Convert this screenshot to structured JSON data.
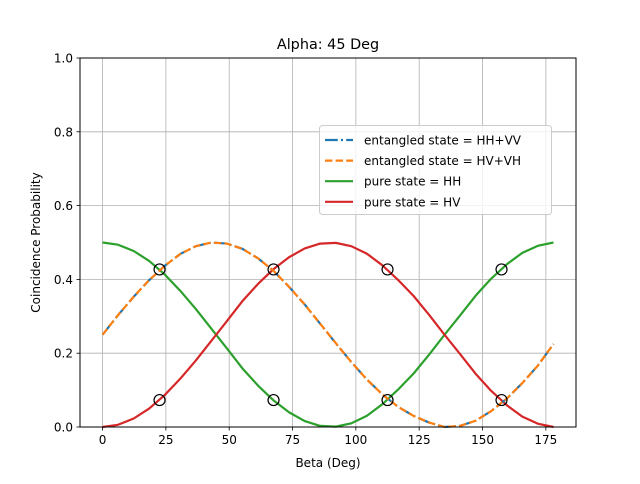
{
  "chart_data": {
    "type": "line",
    "title": "Alpha: 45 Deg",
    "xlabel": "Beta (Deg)",
    "ylabel": "Coincidence Probability",
    "xlim": [
      -8.9,
      186.9
    ],
    "ylim": [
      0.0,
      1.0
    ],
    "xticks": [
      0,
      25,
      50,
      75,
      100,
      125,
      150,
      175
    ],
    "yticks": [
      0.0,
      0.2,
      0.4,
      0.6,
      0.8,
      1.0
    ],
    "xtick_labels": [
      "0",
      "25",
      "50",
      "75",
      "100",
      "125",
      "150",
      "175"
    ],
    "ytick_labels": [
      "0.0",
      "0.2",
      "0.4",
      "0.6",
      "0.8",
      "1.0"
    ],
    "grid": true,
    "legend_position": "upper-right",
    "x": [
      0,
      6.1,
      12.3,
      18.4,
      24.6,
      30.7,
      36.8,
      43.0,
      49.1,
      55.2,
      61.4,
      67.5,
      73.6,
      79.8,
      85.9,
      92.1,
      98.2,
      104.3,
      110.5,
      116.6,
      122.8,
      128.9,
      135.0,
      141.1,
      147.3,
      153.4,
      159.6,
      165.7,
      171.8,
      178.0
    ],
    "series": [
      {
        "name": "entangled state = HH+VV",
        "color": "#1f77b4",
        "style": "dashdot",
        "values": [
          0.25,
          0.303,
          0.353,
          0.398,
          0.437,
          0.469,
          0.49,
          0.5,
          0.497,
          0.483,
          0.457,
          0.423,
          0.38,
          0.332,
          0.28,
          0.227,
          0.176,
          0.129,
          0.088,
          0.055,
          0.03,
          0.012,
          0.0,
          0.003,
          0.017,
          0.043,
          0.077,
          0.119,
          0.166,
          0.225
        ]
      },
      {
        "name": "entangled state = HV+VH",
        "color": "#ff7f0e",
        "style": "dashed",
        "values": [
          0.25,
          0.303,
          0.353,
          0.398,
          0.437,
          0.469,
          0.49,
          0.5,
          0.497,
          0.483,
          0.457,
          0.423,
          0.38,
          0.332,
          0.28,
          0.227,
          0.176,
          0.129,
          0.088,
          0.055,
          0.03,
          0.012,
          0.0,
          0.003,
          0.017,
          0.043,
          0.077,
          0.119,
          0.166,
          0.225
        ]
      },
      {
        "name": "pure state = HH",
        "color": "#2ca02c",
        "style": "solid",
        "values": [
          0.5,
          0.494,
          0.477,
          0.45,
          0.413,
          0.369,
          0.32,
          0.266,
          0.213,
          0.159,
          0.112,
          0.072,
          0.04,
          0.016,
          0.003,
          0.001,
          0.01,
          0.03,
          0.062,
          0.101,
          0.145,
          0.196,
          0.25,
          0.302,
          0.356,
          0.402,
          0.441,
          0.472,
          0.491,
          0.5
        ]
      },
      {
        "name": "pure state = HV",
        "color": "#d62728",
        "style": "solid",
        "values": [
          0.0,
          0.006,
          0.023,
          0.05,
          0.087,
          0.131,
          0.18,
          0.234,
          0.287,
          0.341,
          0.388,
          0.428,
          0.46,
          0.484,
          0.497,
          0.499,
          0.49,
          0.47,
          0.438,
          0.399,
          0.355,
          0.304,
          0.25,
          0.198,
          0.144,
          0.098,
          0.059,
          0.028,
          0.009,
          0.0
        ]
      }
    ],
    "markers": {
      "style": "open-circle",
      "color": "#000000",
      "points": [
        {
          "x": 22.5,
          "y": 0.427
        },
        {
          "x": 67.5,
          "y": 0.427
        },
        {
          "x": 112.5,
          "y": 0.427
        },
        {
          "x": 157.5,
          "y": 0.427
        },
        {
          "x": 22.5,
          "y": 0.073
        },
        {
          "x": 67.5,
          "y": 0.073
        },
        {
          "x": 112.5,
          "y": 0.073
        },
        {
          "x": 157.5,
          "y": 0.073
        }
      ]
    }
  }
}
